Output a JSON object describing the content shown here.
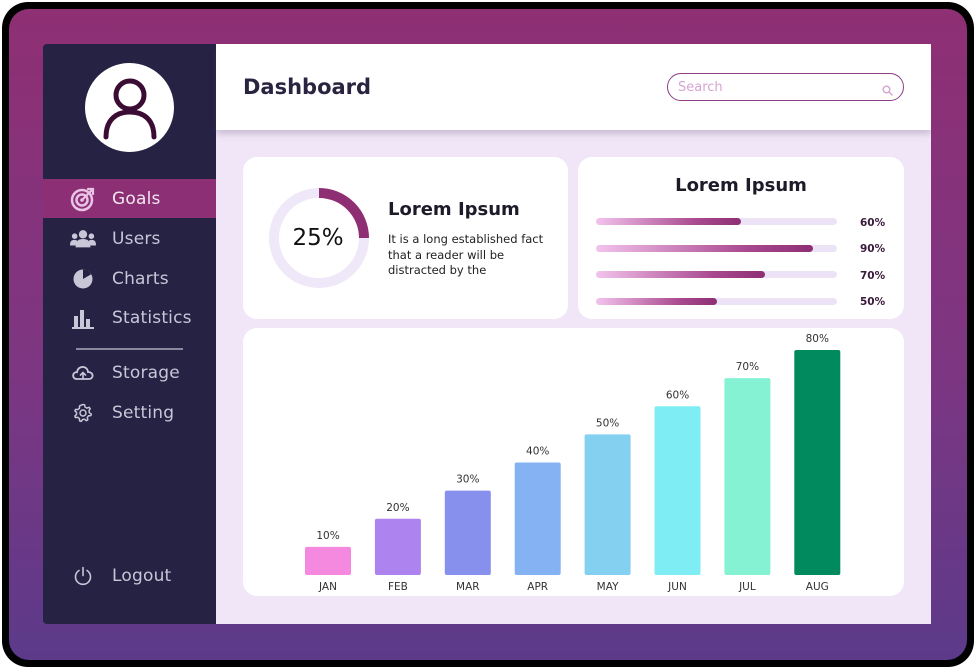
{
  "sidebar": {
    "items": [
      {
        "label": "Goals",
        "icon": "target-icon",
        "active": true
      },
      {
        "label": "Users",
        "icon": "users-icon",
        "active": false
      },
      {
        "label": "Charts",
        "icon": "pie-chart-icon",
        "active": false
      },
      {
        "label": "Statistics",
        "icon": "bar-chart-icon",
        "active": false
      },
      {
        "label": "Storage",
        "icon": "cloud-icon",
        "active": false
      },
      {
        "label": "Setting",
        "icon": "gear-icon",
        "active": false
      }
    ],
    "logout_label": "Logout"
  },
  "header": {
    "title": "Dashboard",
    "search_placeholder": "Search"
  },
  "donut_card": {
    "percent_label": "25%",
    "value": 0.25,
    "title": "Lorem Ipsum",
    "text": "It is a long established fact that a reader will be distracted by the"
  },
  "progress_card": {
    "title": "Lorem Ipsum",
    "bars": [
      {
        "label": "60%",
        "value": 0.6
      },
      {
        "label": "90%",
        "value": 0.9
      },
      {
        "label": "70%",
        "value": 0.7
      },
      {
        "label": "50%",
        "value": 0.5
      }
    ]
  },
  "colors": {
    "sidebar_bg": "#262244",
    "active_item": "#8c2f74",
    "accent": "#8e2f74",
    "bar_colors": [
      "#f588df",
      "#ad83ef",
      "#8890ee",
      "#85b2f2",
      "#83d0f0",
      "#7eeef4",
      "#86f2d4",
      "#008a5e"
    ]
  },
  "chart_data": {
    "type": "bar",
    "categories": [
      "JAN",
      "FEB",
      "MAR",
      "APR",
      "MAY",
      "JUN",
      "JUL",
      "AUG"
    ],
    "values": [
      10,
      20,
      30,
      40,
      50,
      60,
      70,
      80
    ],
    "data_labels": [
      "10%",
      "20%",
      "30%",
      "40%",
      "50%",
      "60%",
      "70%",
      "80%"
    ],
    "ylim": [
      0,
      80
    ],
    "grid": false
  }
}
